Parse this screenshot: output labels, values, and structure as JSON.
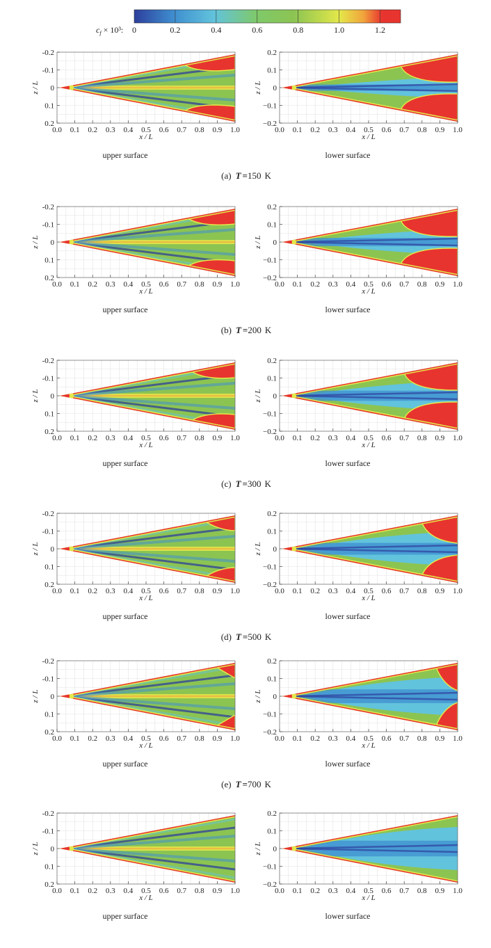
{
  "colorbar": {
    "label_main": "c",
    "label_sub": "f",
    "label_rest": " × 10³:",
    "ticks": [
      "0",
      "0.2",
      "0.4",
      "0.6",
      "0.8",
      "1.0",
      "1.2"
    ],
    "range": [
      0,
      1.3
    ],
    "colors": [
      "#2d3f9c",
      "#3f8fd0",
      "#62c3dc",
      "#7fc96a",
      "#8cc452",
      "#e4e84a",
      "#f1a43c",
      "#e8342f"
    ]
  },
  "axes": {
    "xlabel": "x / L",
    "ylabel": "z / L",
    "xticks": [
      "0.0",
      "0.1",
      "0.2",
      "0.3",
      "0.4",
      "0.5",
      "0.6",
      "0.7",
      "0.8",
      "0.9",
      "1.0"
    ],
    "yticks_upper": [
      "-0.2",
      "-0.1",
      "0",
      "0.1",
      "0.2"
    ],
    "yticks_lower": [
      "0.2",
      "0.1",
      "0",
      "−0.1",
      "−0.2"
    ]
  },
  "chart_data": {
    "type": "heatmap",
    "quantity": "c_f × 10³",
    "xlim": [
      0,
      1
    ],
    "zlim": [
      -0.2,
      0.2
    ],
    "panels": [
      {
        "tag": "(a)",
        "temperature": "150",
        "unit": "K",
        "upper": "upper surface",
        "lower": "lower surface"
      },
      {
        "tag": "(b)",
        "temperature": "200",
        "unit": "K",
        "upper": "upper surface",
        "lower": "lower surface"
      },
      {
        "tag": "(c)",
        "temperature": "300",
        "unit": "K",
        "upper": "upper surface",
        "lower": "lower surface"
      },
      {
        "tag": "(d)",
        "temperature": "500",
        "unit": "K",
        "upper": "upper surface",
        "lower": "lower surface"
      },
      {
        "tag": "(e)",
        "temperature": "700",
        "unit": "K",
        "upper": "upper surface",
        "lower": "lower surface"
      },
      {
        "tag": "",
        "temperature": "",
        "unit": "",
        "upper": "upper surface",
        "lower": "lower surface"
      }
    ]
  }
}
